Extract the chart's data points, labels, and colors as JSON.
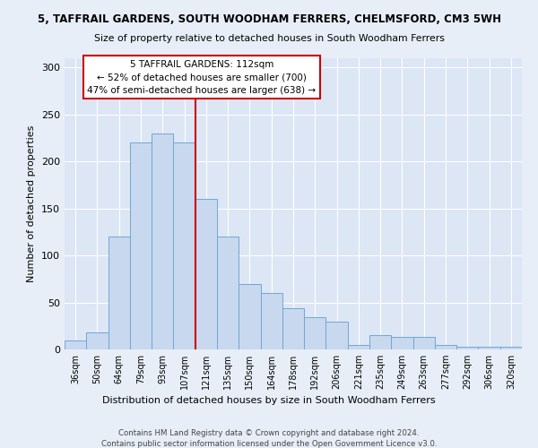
{
  "title1": "5, TAFFRAIL GARDENS, SOUTH WOODHAM FERRERS, CHELMSFORD, CM3 5WH",
  "title2": "Size of property relative to detached houses in South Woodham Ferrers",
  "xlabel": "Distribution of detached houses by size in South Woodham Ferrers",
  "ylabel": "Number of detached properties",
  "footer1": "Contains HM Land Registry data © Crown copyright and database right 2024.",
  "footer2": "Contains public sector information licensed under the Open Government Licence v3.0.",
  "annotation_title": "5 TAFFRAIL GARDENS: 112sqm",
  "annotation_line1": "← 52% of detached houses are smaller (700)",
  "annotation_line2": "47% of semi-detached houses are larger (638) →",
  "bar_categories": [
    "36sqm",
    "50sqm",
    "64sqm",
    "79sqm",
    "93sqm",
    "107sqm",
    "121sqm",
    "135sqm",
    "150sqm",
    "164sqm",
    "178sqm",
    "192sqm",
    "206sqm",
    "221sqm",
    "235sqm",
    "249sqm",
    "263sqm",
    "277sqm",
    "292sqm",
    "306sqm",
    "320sqm"
  ],
  "bar_values": [
    10,
    18,
    120,
    220,
    230,
    220,
    160,
    120,
    70,
    60,
    44,
    34,
    30,
    5,
    15,
    13,
    13,
    5,
    3,
    3,
    3
  ],
  "bar_color": "#c8d8ee",
  "bar_edge_color": "#6fa8d4",
  "vline_color": "#cc0000",
  "vline_index": 5.5,
  "annotation_box_facecolor": "#ffffff",
  "annotation_box_edgecolor": "#cc0000",
  "grid_color": "#ffffff",
  "bg_color": "#dce6f5",
  "fig_bg_color": "#e8eef8",
  "ylim": [
    0,
    310
  ],
  "yticks": [
    0,
    50,
    100,
    150,
    200,
    250,
    300
  ]
}
